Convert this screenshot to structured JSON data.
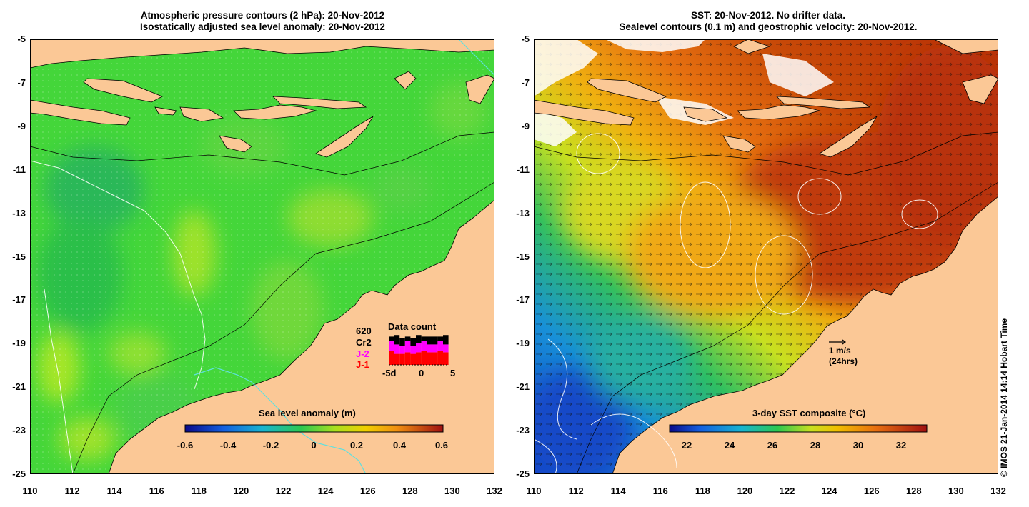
{
  "left_panel": {
    "title_line1": "Atmospheric pressure contours (2 hPa): 20-Nov-2012",
    "title_line2": "Isostatically adjusted sea level anomaly: 20-Nov-2012",
    "colorbar": {
      "title": "Sea level anomaly (m)",
      "ticks": [
        "-0.6",
        "-0.4",
        "-0.2",
        "0",
        "0.2",
        "0.4",
        "0.6"
      ],
      "range": [
        -0.6,
        0.6
      ]
    },
    "data_count": {
      "title": "Data count",
      "count": "620",
      "legend": [
        "Cr2",
        "J-2",
        "J-1"
      ],
      "legend_colors": [
        "#000000",
        "#ff00ff",
        "#ff0000"
      ],
      "axis_ticks": [
        "-5d",
        "0",
        "5"
      ]
    }
  },
  "right_panel": {
    "title_line1": "SST: 20-Nov-2012. No drifter data.",
    "title_line2": "Sealevel contours (0.1 m) and geostrophic velocity: 20-Nov-2012.",
    "colorbar": {
      "title": "3-day SST composite (°C)",
      "ticks": [
        "22",
        "24",
        "26",
        "28",
        "30",
        "32"
      ],
      "range": [
        20.7,
        32.9
      ]
    },
    "velocity_scale": {
      "label": "1 m/s",
      "sublabel": "(24hrs)"
    }
  },
  "axes": {
    "lat_ticks": [
      "-5",
      "-7",
      "-9",
      "-11",
      "-13",
      "-15",
      "-17",
      "-19",
      "-21",
      "-23",
      "-25"
    ],
    "lon_ticks": [
      "110",
      "112",
      "114",
      "116",
      "118",
      "120",
      "122",
      "124",
      "126",
      "128",
      "130",
      "132"
    ],
    "lat_range": [
      -25,
      -5
    ],
    "lon_range": [
      110,
      132
    ]
  },
  "credit": "© IMOS 21-Jan-2014 14:14 Hobart Time",
  "colors": {
    "land": "#fbc896",
    "sla_base": "#3fd43a",
    "sst_warm": "#c23a08",
    "sst_cold": "#1255d0"
  }
}
